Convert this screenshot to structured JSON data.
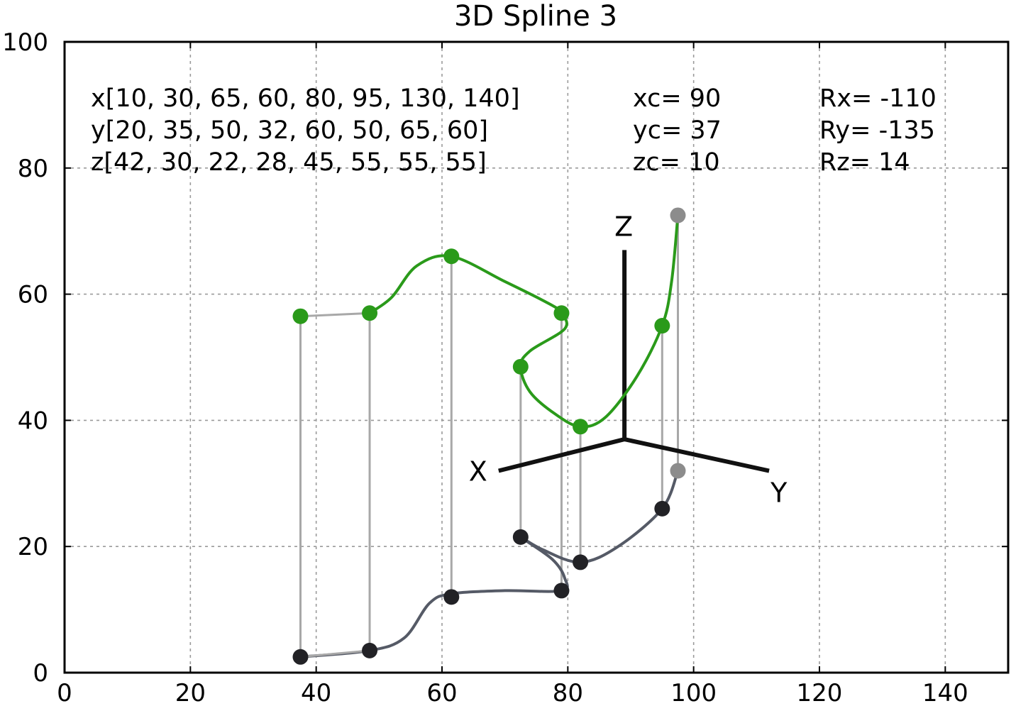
{
  "chart_data": {
    "type": "line",
    "title": "3D Spline 3",
    "xlabel": "",
    "ylabel": "",
    "xlim": [
      0,
      150
    ],
    "ylim": [
      0,
      100
    ],
    "grid": true,
    "x_ticks": [
      0,
      20,
      40,
      60,
      80,
      100,
      120,
      140
    ],
    "y_ticks": [
      0,
      20,
      40,
      60,
      80,
      100
    ],
    "annotations": {
      "x_list": "x[10, 30, 65, 60, 80, 95, 130, 140]",
      "y_list": "y[20, 35, 50, 32, 60, 50, 65, 60]",
      "z_list": "z[42, 30, 22, 28, 45, 55, 55, 55]",
      "xc": "xc= 90",
      "yc": "yc= 37",
      "zc": "zc= 10",
      "rx": "Rx=  -110",
      "ry": "Ry=  -135",
      "rz": "Rz=  14"
    },
    "axes_triad": {
      "origin": [
        89,
        37
      ],
      "x_end": [
        69,
        32
      ],
      "y_end": [
        112,
        32
      ],
      "z_end": [
        89,
        67
      ],
      "labels": {
        "x": "X",
        "y": "Y",
        "z": "Z"
      }
    },
    "series": [
      {
        "role": "spline",
        "points": [
          [
            37.5,
            56.5
          ],
          [
            48.5,
            57
          ],
          [
            61.5,
            66
          ],
          [
            79,
            57
          ],
          [
            72.5,
            48.5
          ],
          [
            82,
            39
          ],
          [
            95,
            55
          ],
          [
            97.5,
            72.5
          ]
        ],
        "curve": [
          [
            37.5,
            56.5
          ],
          [
            48.5,
            57
          ],
          [
            52,
            59.5
          ],
          [
            56,
            64.5
          ],
          [
            61.5,
            66
          ],
          [
            70,
            62
          ],
          [
            77,
            58.5
          ],
          [
            79,
            57
          ],
          [
            79.5,
            54.5
          ],
          [
            74,
            51
          ],
          [
            72.5,
            48.5
          ],
          [
            74,
            44.5
          ],
          [
            78,
            41
          ],
          [
            82,
            39
          ],
          [
            86,
            40.5
          ],
          [
            91,
            47
          ],
          [
            95,
            55
          ],
          [
            96.5,
            62
          ],
          [
            97.5,
            72.5
          ]
        ]
      },
      {
        "role": "projection",
        "points": [
          [
            37.5,
            2.5
          ],
          [
            48.5,
            3.5
          ],
          [
            61.5,
            12
          ],
          [
            79,
            13
          ],
          [
            72.5,
            21.5
          ],
          [
            82,
            17.5
          ],
          [
            95,
            26
          ],
          [
            97.5,
            32
          ]
        ],
        "curve": [
          [
            37.5,
            2.5
          ],
          [
            48.5,
            3.5
          ],
          [
            54,
            5.5
          ],
          [
            58,
            11
          ],
          [
            61.5,
            12.5
          ],
          [
            70,
            13
          ],
          [
            79,
            13
          ],
          [
            79.5,
            15
          ],
          [
            77.5,
            18
          ],
          [
            72.5,
            21.5
          ],
          [
            76,
            19.5
          ],
          [
            82,
            17.5
          ],
          [
            88,
            20
          ],
          [
            95,
            26
          ],
          [
            97.5,
            32
          ]
        ]
      }
    ],
    "colors": {
      "spline": "#2a9a1a",
      "projection": "#555a66",
      "projection_marker": "#222226",
      "drop_line": "#a8a8a8",
      "grid": "#9a9a9a",
      "triad": "#111111",
      "endpoint_marker": "#8c8c8c"
    }
  }
}
